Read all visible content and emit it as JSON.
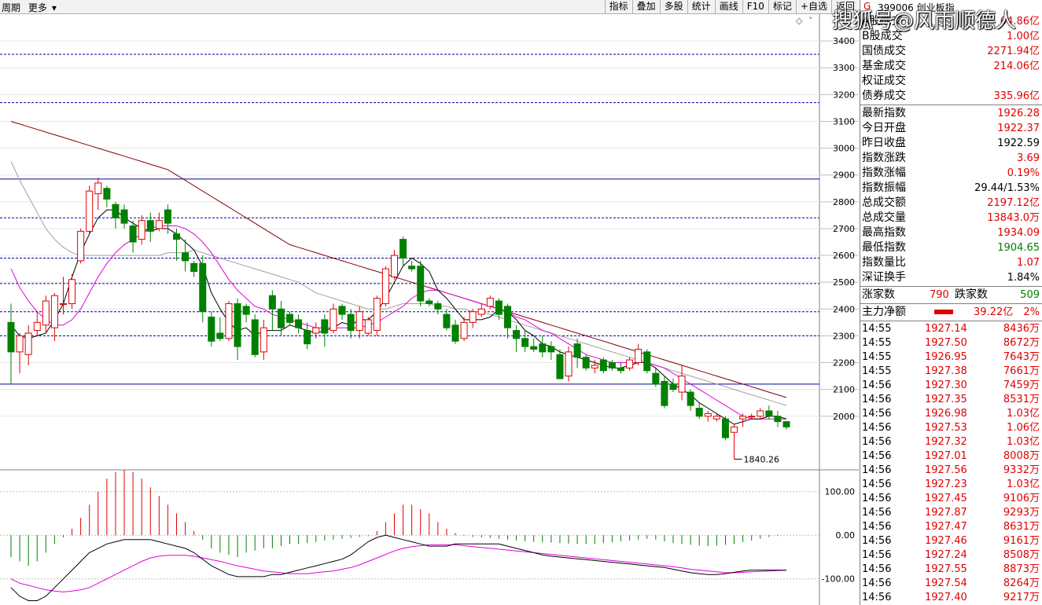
{
  "toolbar": {
    "left_items": [
      "周期",
      "更多"
    ],
    "buttons": [
      "指标",
      "叠加",
      "多股",
      "统计",
      "画线",
      "F10",
      "标记",
      "+自选",
      "返回"
    ]
  },
  "header": {
    "code": "G",
    "name": "399006 创业板指",
    "watermark": "搜狐号@风雨顺德人"
  },
  "summary": [
    {
      "label": "A股成交",
      "value": "64.86亿",
      "color": "red"
    },
    {
      "label": "B股成交",
      "value": "1.00亿",
      "color": "red"
    },
    {
      "label": "国债成交",
      "value": "2271.94亿",
      "color": "red"
    },
    {
      "label": "基金成交",
      "value": "214.06亿",
      "color": "red"
    },
    {
      "label": "权证成交",
      "value": "",
      "color": "red"
    },
    {
      "label": "债券成交",
      "value": "335.96亿",
      "color": "red"
    }
  ],
  "index_stats": [
    {
      "label": "最新指数",
      "value": "1926.28",
      "color": "red"
    },
    {
      "label": "今日开盘",
      "value": "1922.37",
      "color": "red"
    },
    {
      "label": "昨日收盘",
      "value": "1922.59",
      "color": "black"
    },
    {
      "label": "指数涨跌",
      "value": "3.69",
      "color": "red"
    },
    {
      "label": "指数涨幅",
      "value": "0.19%",
      "color": "red"
    },
    {
      "label": "指数振幅",
      "value": "29.44/1.53%",
      "color": "black"
    },
    {
      "label": "总成交额",
      "value": "2197.12亿",
      "color": "red"
    },
    {
      "label": "总成交量",
      "value": "13843.0万",
      "color": "red"
    },
    {
      "label": "最高指数",
      "value": "1934.09",
      "color": "red"
    },
    {
      "label": "最低指数",
      "value": "1904.65",
      "color": "green"
    },
    {
      "label": "指数量比",
      "value": "1.07",
      "color": "red"
    },
    {
      "label": "深证换手",
      "value": "1.84%",
      "color": "black"
    }
  ],
  "breadth": {
    "up_label": "涨家数",
    "up_value": "790",
    "down_label": "跌家数",
    "down_value": "509"
  },
  "main_force": {
    "label": "主力净额",
    "value": "39.22亿",
    "pct": "2%"
  },
  "ticks": [
    {
      "time": "14:55",
      "price": "1927.14",
      "vol": "8436万"
    },
    {
      "time": "14:55",
      "price": "1927.50",
      "vol": "8672万"
    },
    {
      "time": "14:55",
      "price": "1926.95",
      "vol": "7643万"
    },
    {
      "time": "14:55",
      "price": "1927.38",
      "vol": "7661万"
    },
    {
      "time": "14:56",
      "price": "1927.30",
      "vol": "7459万"
    },
    {
      "time": "14:56",
      "price": "1927.35",
      "vol": "8531万"
    },
    {
      "time": "14:56",
      "price": "1926.98",
      "vol": "1.03亿"
    },
    {
      "time": "14:56",
      "price": "1927.53",
      "vol": "1.06亿"
    },
    {
      "time": "14:56",
      "price": "1927.32",
      "vol": "1.03亿"
    },
    {
      "time": "14:56",
      "price": "1927.01",
      "vol": "8008万"
    },
    {
      "time": "14:56",
      "price": "1927.56",
      "vol": "9332万"
    },
    {
      "time": "14:56",
      "price": "1927.23",
      "vol": "1.03亿"
    },
    {
      "time": "14:56",
      "price": "1927.45",
      "vol": "9106万"
    },
    {
      "time": "14:56",
      "price": "1927.87",
      "vol": "9293万"
    },
    {
      "time": "14:56",
      "price": "1927.47",
      "vol": "8631万"
    },
    {
      "time": "14:56",
      "price": "1927.46",
      "vol": "9161万"
    },
    {
      "time": "14:56",
      "price": "1927.24",
      "vol": "8508万"
    },
    {
      "time": "14:56",
      "price": "1927.55",
      "vol": "8873万"
    },
    {
      "time": "14:56",
      "price": "1927.54",
      "vol": "8264万"
    },
    {
      "time": "14:56",
      "price": "1927.40",
      "vol": "9217万"
    }
  ],
  "colors": {
    "up": "#e00000",
    "down": "#008000",
    "ma5": "#000000",
    "ma10": "#e000e0",
    "ma20": "#a0a0a0",
    "ma60": "#800000",
    "grid": "#0000a0"
  },
  "chart_data": {
    "type": "candlestick",
    "price_axis": {
      "ticks": [
        3400,
        3300,
        3200,
        3100,
        3000,
        2900,
        2800,
        2700,
        2600,
        2500,
        2400,
        2300,
        2200,
        2100,
        2000
      ],
      "range": [
        1800,
        3500
      ]
    },
    "horizontal_lines": [
      2885,
      2120
    ],
    "dashed_lines": [
      3350,
      3170,
      2740,
      2590,
      2495,
      2390,
      2300
    ],
    "low_annotation": "1840.26",
    "candles": [
      [
        2350,
        2240,
        2420,
        2120
      ],
      [
        2240,
        2300,
        2310,
        2160
      ],
      [
        2230,
        2310,
        2340,
        2190
      ],
      [
        2320,
        2350,
        2390,
        2300
      ],
      [
        2340,
        2430,
        2450,
        2310
      ],
      [
        2330,
        2450,
        2460,
        2280
      ],
      [
        2420,
        2420,
        2520,
        2380
      ],
      [
        2420,
        2510,
        2530,
        2400
      ],
      [
        2580,
        2690,
        2700,
        2570
      ],
      [
        2690,
        2840,
        2860,
        2680
      ],
      [
        2830,
        2870,
        2890,
        2770
      ],
      [
        2850,
        2810,
        2860,
        2780
      ],
      [
        2790,
        2740,
        2800,
        2700
      ],
      [
        2770,
        2720,
        2790,
        2700
      ],
      [
        2710,
        2650,
        2730,
        2610
      ],
      [
        2660,
        2730,
        2750,
        2640
      ],
      [
        2730,
        2690,
        2760,
        2650
      ],
      [
        2700,
        2730,
        2760,
        2690
      ],
      [
        2770,
        2720,
        2790,
        2680
      ],
      [
        2680,
        2660,
        2700,
        2580
      ],
      [
        2610,
        2580,
        2660,
        2540
      ],
      [
        2570,
        2540,
        2580,
        2520
      ],
      [
        2570,
        2390,
        2600,
        2350
      ],
      [
        2370,
        2280,
        2390,
        2260
      ],
      [
        2310,
        2290,
        2370,
        2280
      ],
      [
        2290,
        2420,
        2430,
        2280
      ],
      [
        2420,
        2260,
        2440,
        2210
      ],
      [
        2410,
        2380,
        2420,
        2350
      ],
      [
        2360,
        2230,
        2380,
        2220
      ],
      [
        2240,
        2330,
        2360,
        2210
      ],
      [
        2450,
        2400,
        2470,
        2320
      ],
      [
        2400,
        2330,
        2430,
        2300
      ],
      [
        2380,
        2350,
        2390,
        2340
      ],
      [
        2360,
        2330,
        2380,
        2310
      ],
      [
        2320,
        2270,
        2350,
        2250
      ],
      [
        2310,
        2330,
        2350,
        2290
      ],
      [
        2360,
        2310,
        2380,
        2260
      ],
      [
        2320,
        2400,
        2420,
        2310
      ],
      [
        2410,
        2380,
        2420,
        2360
      ],
      [
        2380,
        2320,
        2400,
        2290
      ],
      [
        2320,
        2390,
        2410,
        2290
      ],
      [
        2310,
        2360,
        2370,
        2300
      ],
      [
        2320,
        2440,
        2450,
        2300
      ],
      [
        2420,
        2550,
        2560,
        2410
      ],
      [
        2520,
        2600,
        2620,
        2510
      ],
      [
        2660,
        2590,
        2670,
        2560
      ],
      [
        2560,
        2550,
        2580,
        2540
      ],
      [
        2560,
        2430,
        2580,
        2410
      ],
      [
        2430,
        2420,
        2440,
        2410
      ],
      [
        2420,
        2400,
        2430,
        2380
      ],
      [
        2380,
        2330,
        2400,
        2320
      ],
      [
        2340,
        2280,
        2360,
        2270
      ],
      [
        2290,
        2350,
        2370,
        2280
      ],
      [
        2350,
        2390,
        2400,
        2330
      ],
      [
        2380,
        2400,
        2420,
        2370
      ],
      [
        2410,
        2440,
        2450,
        2400
      ],
      [
        2430,
        2380,
        2440,
        2360
      ],
      [
        2410,
        2330,
        2420,
        2290
      ],
      [
        2320,
        2290,
        2340,
        2240
      ],
      [
        2290,
        2260,
        2320,
        2240
      ],
      [
        2260,
        2250,
        2290,
        2240
      ],
      [
        2270,
        2240,
        2300,
        2220
      ],
      [
        2260,
        2240,
        2280,
        2210
      ],
      [
        2230,
        2140,
        2250,
        2140
      ],
      [
        2150,
        2240,
        2260,
        2130
      ],
      [
        2270,
        2220,
        2290,
        2180
      ],
      [
        2220,
        2180,
        2230,
        2170
      ],
      [
        2180,
        2190,
        2210,
        2160
      ],
      [
        2210,
        2170,
        2220,
        2160
      ],
      [
        2200,
        2180,
        2210,
        2170
      ],
      [
        2180,
        2170,
        2200,
        2160
      ],
      [
        2180,
        2210,
        2220,
        2170
      ],
      [
        2200,
        2250,
        2270,
        2190
      ],
      [
        2240,
        2170,
        2250,
        2160
      ],
      [
        2160,
        2120,
        2180,
        2110
      ],
      [
        2130,
        2040,
        2150,
        2030
      ],
      [
        2120,
        2100,
        2140,
        2090
      ],
      [
        2090,
        2150,
        2190,
        2060
      ],
      [
        2090,
        2040,
        2100,
        2020
      ],
      [
        2030,
        2000,
        2050,
        1990
      ],
      [
        2000,
        2010,
        2020,
        1980
      ],
      [
        1990,
        2000,
        2010,
        1980
      ],
      [
        1990,
        1920,
        2000,
        1910
      ],
      [
        1940,
        1960,
        1970,
        1840
      ],
      [
        1990,
        2000,
        2010,
        1960
      ],
      [
        2000,
        2000,
        2010,
        1990
      ],
      [
        2000,
        2020,
        2030,
        1990
      ],
      [
        2020,
        2000,
        2040,
        1990
      ],
      [
        2000,
        1980,
        2020,
        1960
      ],
      [
        1980,
        1960,
        1980,
        1950
      ]
    ],
    "ma5": [
      2340,
      2300,
      2290,
      2300,
      2310,
      2360,
      2420,
      2520,
      2610,
      2680,
      2740,
      2770,
      2770,
      2740,
      2720,
      2700,
      2690,
      2700,
      2700,
      2680,
      2650,
      2620,
      2560,
      2460,
      2400,
      2350,
      2320,
      2330,
      2300,
      2320,
      2320,
      2320,
      2340,
      2330,
      2320,
      2310,
      2320,
      2330,
      2350,
      2340,
      2360,
      2360,
      2390,
      2440,
      2500,
      2560,
      2590,
      2570,
      2540,
      2470,
      2440,
      2400,
      2360,
      2360,
      2360,
      2370,
      2400,
      2390,
      2360,
      2320,
      2300,
      2270,
      2260,
      2240,
      2230,
      2220,
      2210,
      2200,
      2190,
      2180,
      2180,
      2190,
      2200,
      2200,
      2180,
      2150,
      2120,
      2100,
      2080,
      2050,
      2030,
      2010,
      1990,
      1970,
      1980,
      1990,
      1990,
      2000,
      2000,
      1990
    ],
    "ma10": [
      2550,
      2480,
      2430,
      2390,
      2360,
      2340,
      2340,
      2360,
      2400,
      2460,
      2520,
      2570,
      2610,
      2640,
      2660,
      2680,
      2700,
      2710,
      2710,
      2710,
      2700,
      2680,
      2650,
      2610,
      2560,
      2510,
      2470,
      2440,
      2410,
      2400,
      2380,
      2370,
      2360,
      2350,
      2340,
      2330,
      2330,
      2330,
      2330,
      2330,
      2330,
      2340,
      2350,
      2370,
      2390,
      2410,
      2440,
      2460,
      2470,
      2470,
      2460,
      2450,
      2440,
      2430,
      2420,
      2410,
      2400,
      2390,
      2370,
      2360,
      2340,
      2320,
      2310,
      2290,
      2270,
      2250,
      2230,
      2220,
      2210,
      2200,
      2200,
      2200,
      2200,
      2200,
      2190,
      2180,
      2160,
      2140,
      2120,
      2100,
      2080,
      2060,
      2040,
      2020,
      2000,
      1990,
      1990,
      1990,
      1990,
      1990
    ],
    "ma20": [
      2950,
      2880,
      2820,
      2760,
      2700,
      2660,
      2630,
      2610,
      2600,
      2600,
      2600,
      2600,
      2600,
      2600,
      2600,
      2600,
      2600,
      2600,
      2610,
      2610,
      2610,
      2620,
      2610,
      2600,
      2590,
      2580,
      2570,
      2560,
      2550,
      2540,
      2530,
      2520,
      2510,
      2500,
      2480,
      2460,
      2450,
      2440,
      2430,
      2420,
      2410,
      2400,
      2400,
      2400,
      2410,
      2420,
      2420,
      2420,
      2420,
      2410,
      2410,
      2400,
      2400,
      2390,
      2390,
      2380,
      2370,
      2360,
      2350,
      2340,
      2330,
      2320,
      2310,
      2300,
      2290,
      2280,
      2270,
      2260,
      2250,
      2240,
      2230,
      2220,
      2210,
      2200,
      2190,
      2180,
      2170,
      2160,
      2150,
      2140,
      2130,
      2120,
      2110,
      2100,
      2090,
      2080,
      2070,
      2060,
      2050,
      2040
    ],
    "ma60": [
      3100,
      3090,
      3080,
      3070,
      3060,
      3050,
      3040,
      3030,
      3020,
      3010,
      3000,
      2990,
      2980,
      2970,
      2960,
      2950,
      2940,
      2930,
      2920,
      2900,
      2880,
      2860,
      2840,
      2820,
      2800,
      2780,
      2760,
      2740,
      2720,
      2700,
      2680,
      2660,
      2640,
      2630,
      2620,
      2610,
      2600,
      2590,
      2580,
      2570,
      2560,
      2550,
      2540,
      2530,
      2520,
      2510,
      2500,
      2490,
      2480,
      2470,
      2460,
      2450,
      2440,
      2430,
      2420,
      2410,
      2400,
      2390,
      2380,
      2370,
      2360,
      2350,
      2340,
      2330,
      2320,
      2310,
      2300,
      2290,
      2280,
      2270,
      2260,
      2250,
      2240,
      2230,
      2220,
      2210,
      2200,
      2190,
      2180,
      2170,
      2160,
      2150,
      2140,
      2130,
      2120,
      2110,
      2100,
      2090,
      2080,
      2070
    ],
    "macd_axis": {
      "ticks": [
        100.0,
        0.0,
        -100.0
      ],
      "range": [
        -160,
        150
      ]
    },
    "macd_hist": [
      -50,
      -60,
      -70,
      -60,
      -40,
      -20,
      -5,
      15,
      40,
      70,
      100,
      130,
      145,
      150,
      145,
      130,
      110,
      90,
      70,
      50,
      30,
      10,
      -10,
      -30,
      -40,
      -45,
      -50,
      -40,
      -35,
      -30,
      -30,
      -25,
      -20,
      -20,
      -18,
      -15,
      -12,
      -10,
      -8,
      -6,
      -4,
      -2,
      10,
      30,
      50,
      70,
      70,
      60,
      50,
      30,
      15,
      5,
      -2,
      -4,
      -5,
      -6,
      -8,
      -10,
      -12,
      -14,
      -15,
      -16,
      -17,
      -18,
      -19,
      -20,
      -20,
      -20,
      -18,
      -16,
      -14,
      -12,
      -10,
      -8,
      -10,
      -14,
      -18,
      -20,
      -22,
      -24,
      -25,
      -24,
      -22,
      -20,
      -16,
      -12,
      -8,
      -4,
      -2,
      0
    ],
    "macd_dif": [
      -120,
      -140,
      -150,
      -150,
      -140,
      -120,
      -100,
      -80,
      -60,
      -40,
      -30,
      -20,
      -15,
      -10,
      -10,
      -10,
      -10,
      -15,
      -20,
      -25,
      -30,
      -40,
      -55,
      -70,
      -80,
      -90,
      -95,
      -95,
      -95,
      -95,
      -90,
      -90,
      -85,
      -80,
      -75,
      -70,
      -65,
      -60,
      -55,
      -45,
      -30,
      -15,
      -5,
      0,
      -5,
      -10,
      -15,
      -20,
      -25,
      -25,
      -25,
      -20,
      -20,
      -20,
      -20,
      -20,
      -20,
      -25,
      -30,
      -35,
      -40,
      -45,
      -48,
      -50,
      -52,
      -54,
      -56,
      -58,
      -60,
      -62,
      -64,
      -66,
      -68,
      -70,
      -72,
      -74,
      -78,
      -82,
      -86,
      -88,
      -90,
      -90,
      -88,
      -85,
      -82,
      -80,
      -80,
      -80,
      -80,
      -80
    ],
    "macd_dea": [
      -100,
      -110,
      -115,
      -120,
      -125,
      -128,
      -130,
      -128,
      -125,
      -120,
      -110,
      -100,
      -90,
      -80,
      -70,
      -60,
      -52,
      -48,
      -46,
      -46,
      -46,
      -48,
      -52,
      -56,
      -60,
      -65,
      -70,
      -74,
      -78,
      -82,
      -84,
      -86,
      -88,
      -88,
      -88,
      -86,
      -84,
      -82,
      -78,
      -74,
      -68,
      -60,
      -52,
      -44,
      -36,
      -30,
      -26,
      -24,
      -22,
      -22,
      -22,
      -22,
      -24,
      -26,
      -28,
      -30,
      -32,
      -34,
      -36,
      -38,
      -40,
      -42,
      -44,
      -46,
      -48,
      -50,
      -52,
      -54,
      -56,
      -58,
      -60,
      -62,
      -64,
      -66,
      -68,
      -70,
      -72,
      -75,
      -78,
      -80,
      -82,
      -84,
      -86,
      -86,
      -85,
      -84,
      -83,
      -82,
      -81,
      -80
    ]
  }
}
